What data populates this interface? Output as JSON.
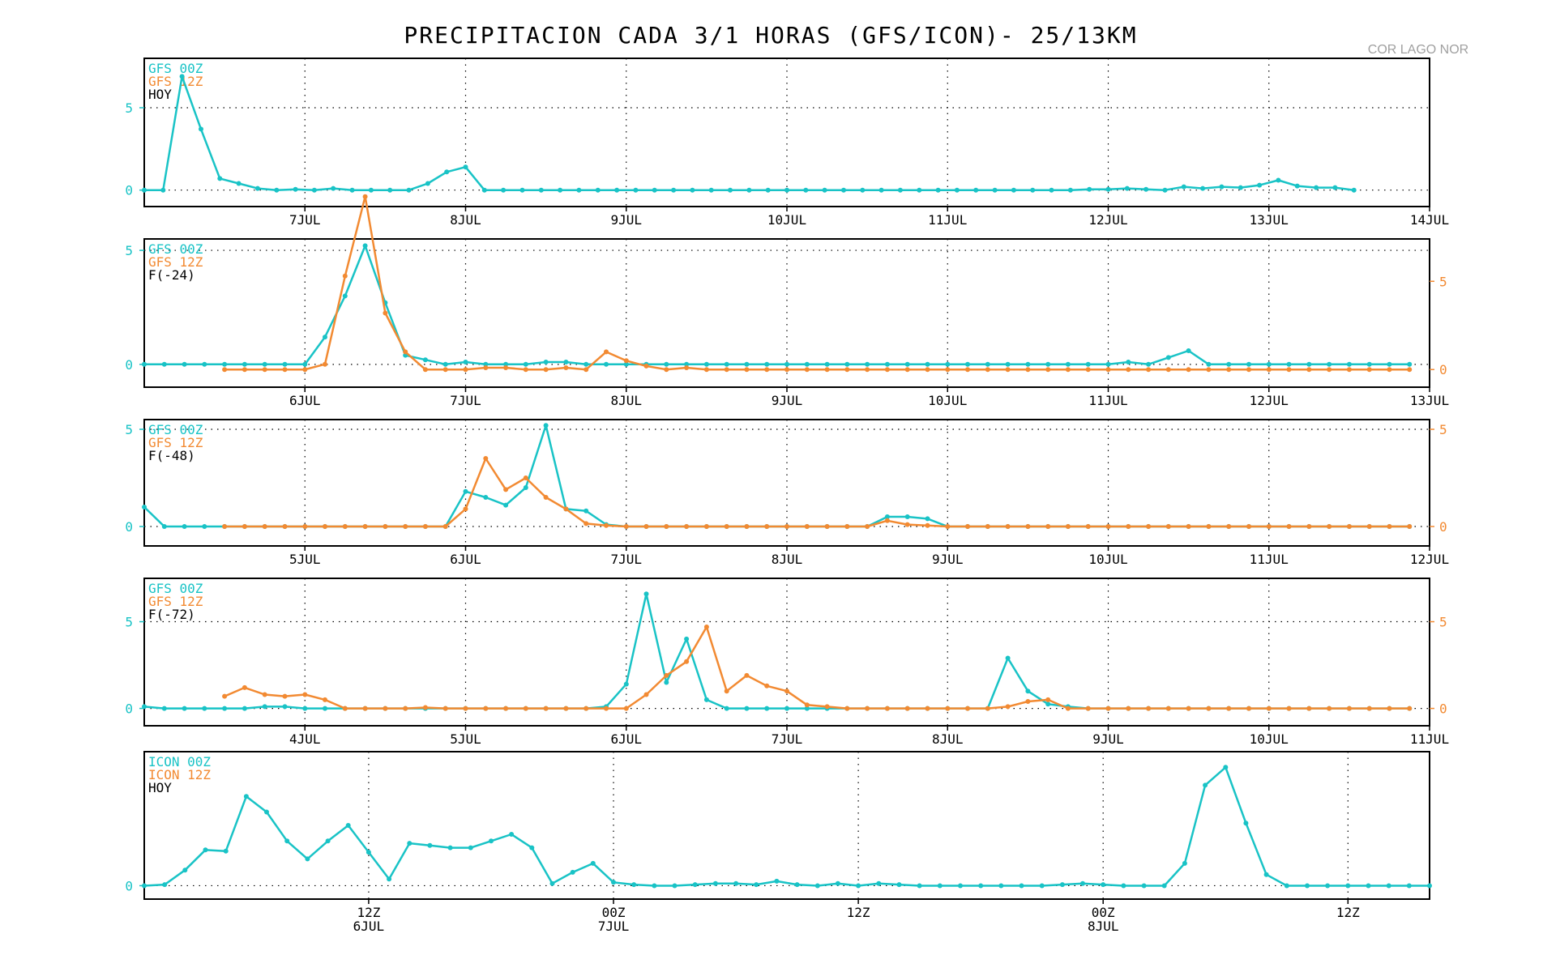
{
  "title": "PRECIPITACION CADA 3/1 HORAS (GFS/ICON)- 25/13KM",
  "location": "COR LAGO NOR",
  "colors": {
    "series0": "#19c3c6",
    "series1": "#f28a32",
    "label": "#000000",
    "axis": "#000000"
  },
  "chart_data": [
    {
      "type": "line",
      "legend": [
        "GFS 00Z",
        "GFS 12Z",
        "HOY"
      ],
      "x_ticks": [
        "7JUL",
        "8JUL",
        "9JUL",
        "10JUL",
        "11JUL",
        "12JUL",
        "13JUL",
        "14JUL"
      ],
      "y_ticks_left": [
        "0",
        "5"
      ],
      "ylim": [
        -1,
        8
      ],
      "x_range": [
        0,
        68
      ],
      "series": [
        {
          "name": "GFS 00Z",
          "axis": "left",
          "values": [
            0,
            0,
            6.9,
            3.7,
            0.7,
            0.4,
            0.1,
            0,
            0.05,
            0,
            0.1,
            0,
            0,
            0,
            0,
            0.4,
            1.1,
            1.4,
            0,
            0,
            0,
            0,
            0,
            0,
            0,
            0,
            0,
            0,
            0,
            0,
            0,
            0,
            0,
            0,
            0,
            0,
            0,
            0,
            0,
            0,
            0,
            0,
            0,
            0,
            0,
            0,
            0,
            0,
            0,
            0,
            0.05,
            0.05,
            0.1,
            0.05,
            0,
            0.2,
            0.1,
            0.2,
            0.15,
            0.3,
            0.6,
            0.25,
            0.15,
            0.15,
            0
          ]
        }
      ]
    },
    {
      "type": "line",
      "legend": [
        "GFS 00Z",
        "GFS 12Z",
        "F(-24)"
      ],
      "x_ticks": [
        "6JUL",
        "7JUL",
        "8JUL",
        "9JUL",
        "10JUL",
        "11JUL",
        "12JUL",
        "13JUL"
      ],
      "y_ticks_left": [
        "0",
        "5"
      ],
      "y_ticks_right": [
        "0",
        "5"
      ],
      "ylim": [
        -1,
        5.5
      ],
      "y2lim": [
        -1,
        7.4
      ],
      "x_range": [
        0,
        64
      ],
      "series": [
        {
          "name": "GFS 00Z",
          "axis": "left",
          "values": [
            0,
            0,
            0,
            0,
            0,
            0,
            0,
            0,
            0,
            1.2,
            3.0,
            5.2,
            2.7,
            0.4,
            0.2,
            0,
            0.1,
            0,
            0,
            0,
            0.1,
            0.1,
            0,
            0,
            0,
            0,
            0,
            0,
            0,
            0,
            0,
            0,
            0,
            0,
            0,
            0,
            0,
            0,
            0,
            0,
            0,
            0,
            0,
            0,
            0,
            0,
            0,
            0,
            0,
            0.1,
            0,
            0.3,
            0.6,
            0,
            0,
            0,
            0,
            0,
            0,
            0,
            0,
            0,
            0,
            0
          ]
        },
        {
          "name": "GFS 12Z",
          "axis": "right",
          "start": 4,
          "values": [
            0,
            0,
            0,
            0,
            0,
            0.3,
            5.3,
            9.8,
            3.2,
            1.0,
            0,
            0,
            0,
            0.1,
            0.1,
            0,
            0,
            0.1,
            0,
            1.0,
            0.5,
            0.2,
            0,
            0.1,
            0,
            0,
            0,
            0,
            0,
            0,
            0,
            0,
            0,
            0,
            0,
            0,
            0,
            0,
            0,
            0,
            0,
            0,
            0,
            0,
            0,
            0,
            0,
            0,
            0,
            0,
            0,
            0,
            0,
            0,
            0,
            0,
            0,
            0,
            0,
            0
          ]
        }
      ]
    },
    {
      "type": "line",
      "legend": [
        "GFS 00Z",
        "GFS 12Z",
        "F(-48)"
      ],
      "x_ticks": [
        "5JUL",
        "6JUL",
        "7JUL",
        "8JUL",
        "9JUL",
        "10JUL",
        "11JUL",
        "12JUL"
      ],
      "y_ticks_left": [
        "0",
        "5"
      ],
      "y_ticks_right": [
        "0",
        "5"
      ],
      "ylim": [
        -1,
        5.5
      ],
      "y2lim": [
        -1,
        5.5
      ],
      "x_range": [
        0,
        64
      ],
      "series": [
        {
          "name": "GFS 00Z",
          "axis": "left",
          "values": [
            1.0,
            0,
            0,
            0,
            0,
            0,
            0,
            0,
            0,
            0,
            0,
            0,
            0,
            0,
            0,
            0,
            1.8,
            1.5,
            1.1,
            2.0,
            5.2,
            0.9,
            0.8,
            0.1,
            0,
            0,
            0,
            0,
            0,
            0,
            0,
            0,
            0,
            0,
            0,
            0,
            0,
            0.5,
            0.5,
            0.4,
            0,
            0,
            0,
            0,
            0,
            0,
            0,
            0,
            0,
            0,
            0,
            0,
            0,
            0,
            0,
            0,
            0,
            0,
            0,
            0,
            0,
            0,
            0,
            0
          ]
        },
        {
          "name": "GFS 12Z",
          "axis": "right",
          "start": 4,
          "values": [
            0,
            0,
            0,
            0,
            0,
            0,
            0,
            0,
            0,
            0,
            0,
            0,
            0.9,
            3.5,
            1.9,
            2.5,
            1.5,
            0.9,
            0.15,
            0.05,
            0,
            0,
            0,
            0,
            0,
            0,
            0,
            0,
            0,
            0,
            0,
            0,
            0,
            0.3,
            0.1,
            0.05,
            0,
            0,
            0,
            0,
            0,
            0,
            0,
            0,
            0,
            0,
            0,
            0,
            0,
            0,
            0,
            0,
            0,
            0,
            0,
            0,
            0,
            0,
            0,
            0
          ]
        }
      ]
    },
    {
      "type": "line",
      "legend": [
        "GFS 00Z",
        "GFS 12Z",
        "F(-72)"
      ],
      "x_ticks": [
        "4JUL",
        "5JUL",
        "6JUL",
        "7JUL",
        "8JUL",
        "9JUL",
        "10JUL",
        "11JUL"
      ],
      "y_ticks_left": [
        "0",
        "5"
      ],
      "y_ticks_right": [
        "0",
        "5"
      ],
      "ylim": [
        -1,
        7.5
      ],
      "y2lim": [
        -1,
        7.5
      ],
      "x_range": [
        0,
        64
      ],
      "series": [
        {
          "name": "GFS 00Z",
          "axis": "left",
          "values": [
            0.1,
            0,
            0,
            0,
            0,
            0,
            0.1,
            0.1,
            0,
            0,
            0,
            0,
            0,
            0,
            0,
            0,
            0,
            0,
            0,
            0,
            0,
            0,
            0,
            0.1,
            1.4,
            6.6,
            1.5,
            4.0,
            0.5,
            0,
            0,
            0,
            0,
            0,
            0,
            0,
            0,
            0,
            0,
            0,
            0,
            0,
            0,
            2.9,
            1.0,
            0.25,
            0.1,
            0,
            0,
            0,
            0,
            0,
            0,
            0,
            0,
            0,
            0,
            0,
            0,
            0,
            0,
            0,
            0,
            0
          ]
        },
        {
          "name": "GFS 12Z",
          "axis": "right",
          "start": 4,
          "values": [
            0.7,
            1.2,
            0.8,
            0.7,
            0.8,
            0.5,
            0,
            0,
            0,
            0,
            0.05,
            0,
            0,
            0,
            0,
            0,
            0,
            0,
            0,
            0,
            0,
            0.8,
            1.9,
            2.7,
            4.7,
            1.0,
            1.9,
            1.3,
            1.0,
            0.2,
            0.1,
            0,
            0,
            0,
            0,
            0,
            0,
            0,
            0,
            0.1,
            0.4,
            0.5,
            0,
            0,
            0,
            0,
            0,
            0,
            0,
            0,
            0,
            0,
            0,
            0,
            0,
            0,
            0,
            0,
            0,
            0
          ]
        }
      ]
    },
    {
      "type": "line",
      "legend": [
        "ICON 00Z",
        "ICON 12Z",
        "HOY"
      ],
      "x_ticks": [
        {
          "top": "12Z",
          "bottom": "6JUL"
        },
        {
          "top": "00Z",
          "bottom": "7JUL"
        },
        {
          "top": "12Z",
          "bottom": ""
        },
        {
          "top": "00Z",
          "bottom": "8JUL"
        },
        {
          "top": "12Z",
          "bottom": ""
        }
      ],
      "y_ticks_left": [
        "0"
      ],
      "ylim": [
        -0.6,
        6.0
      ],
      "x_range": [
        0,
        63
      ],
      "series": [
        {
          "name": "ICON 00Z",
          "axis": "left",
          "values": [
            0,
            0.05,
            0.7,
            1.6,
            1.55,
            4.0,
            3.3,
            2.0,
            1.2,
            2.0,
            2.7,
            1.5,
            0.3,
            1.9,
            1.8,
            1.7,
            1.7,
            2.0,
            2.3,
            1.7,
            0.1,
            0.6,
            1.0,
            0.15,
            0.05,
            0,
            0,
            0.05,
            0.1,
            0.1,
            0.05,
            0.2,
            0.05,
            0,
            0.1,
            0,
            0.1,
            0.05,
            0,
            0,
            0,
            0,
            0,
            0,
            0,
            0.05,
            0.1,
            0.05,
            0,
            0,
            0,
            1.0,
            4.5,
            5.3,
            2.8,
            0.5,
            0,
            0,
            0,
            0,
            0,
            0,
            0,
            0
          ]
        }
      ]
    }
  ]
}
